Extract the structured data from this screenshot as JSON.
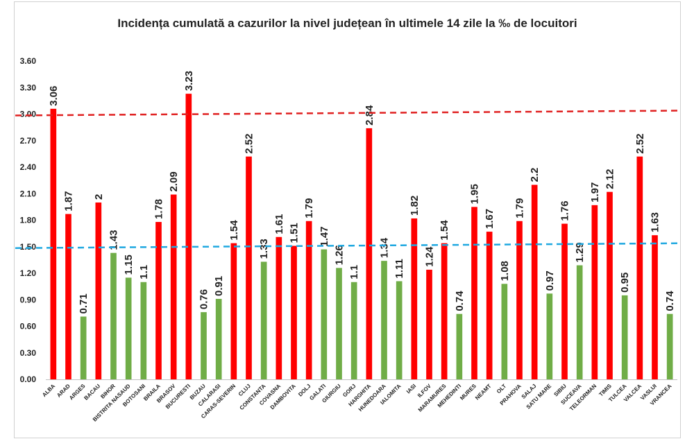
{
  "chart_data": {
    "type": "bar",
    "title": "Incidența cumulată a cazurilor la nivel județean în ultimele 14 zile la ‰ de locuitori",
    "xlabel": "",
    "ylabel": "",
    "ylim": [
      0,
      3.6
    ],
    "yticks": [
      "0.00",
      "0.30",
      "0.60",
      "0.90",
      "1.20",
      "1.50",
      "1.80",
      "2.10",
      "2.40",
      "2.70",
      "3.00",
      "3.30",
      "3.60"
    ],
    "grid": false,
    "colors": {
      "above": "#ff0000",
      "below": "#70ad47",
      "red_line": "#e02020",
      "blue_line": "#1fa8e0"
    },
    "threshold_lines": [
      {
        "name": "3.00",
        "value": 3.0,
        "color": "#e02020"
      },
      {
        "name": "1.50",
        "value": 1.5,
        "color": "#1fa8e0"
      }
    ],
    "categories": [
      "ALBA",
      "ARAD",
      "ARGES",
      "BACAU",
      "BIHOR",
      "BISTRITA NASAUD",
      "BOTOSANI",
      "BRAILA",
      "BRASOV",
      "BUCURESTI",
      "BUZAU",
      "CALARASI",
      "CARAS-SEVERIN",
      "CLUJ",
      "CONSTANTA",
      "COVASNA",
      "DAMBOVITA",
      "DOLJ",
      "GALATI",
      "GIURGIU",
      "GORJ",
      "HARGHITA",
      "HUNEDOARA",
      "IALOMITA",
      "IASI",
      "ILFOV",
      "MARAMURES",
      "MEHEDINTI",
      "MURES",
      "NEAMT",
      "OLT",
      "PRAHOVA",
      "SALAJ",
      "SATU MARE",
      "SIBIU",
      "SUCEAVA",
      "TELEORMAN",
      "TIMIS",
      "TULCEA",
      "VALCEA",
      "VASLUI",
      "VRANCEA"
    ],
    "values": [
      3.06,
      1.87,
      0.71,
      2,
      1.43,
      1.15,
      1.1,
      1.78,
      2.09,
      3.23,
      0.76,
      0.91,
      1.54,
      2.52,
      1.33,
      1.61,
      1.51,
      1.79,
      1.47,
      1.26,
      1.1,
      2.84,
      1.34,
      1.11,
      1.82,
      1.24,
      1.54,
      0.74,
      1.95,
      1.67,
      1.08,
      1.79,
      2.2,
      0.97,
      1.76,
      1.29,
      1.97,
      2.12,
      0.95,
      2.52,
      1.63,
      0.74
    ],
    "value_labels": [
      "3.06",
      "1.87",
      "0.71",
      "2",
      "1.43",
      "1.15",
      "1.1",
      "1.78",
      "2.09",
      "3.23",
      "0.76",
      "0.91",
      "1.54",
      "2.52",
      "1.33",
      "1.61",
      "1.51",
      "1.79",
      "1.47",
      "1.26",
      "1.1",
      "2.84",
      "1.34",
      "1.11",
      "1.82",
      "1.24",
      "1.54",
      "0.74",
      "1.95",
      "1.67",
      "1.08",
      "1.79",
      "2.2",
      "0.97",
      "1.76",
      "1.29",
      "1.97",
      "2.12",
      "0.95",
      "2.52",
      "1.63",
      "0.74"
    ],
    "bar_colors": [
      "red",
      "red",
      "green",
      "red",
      "green",
      "green",
      "green",
      "red",
      "red",
      "red",
      "green",
      "green",
      "red",
      "red",
      "green",
      "red",
      "red",
      "red",
      "green",
      "green",
      "green",
      "red",
      "green",
      "green",
      "red",
      "red",
      "red",
      "green",
      "red",
      "red",
      "green",
      "red",
      "red",
      "green",
      "red",
      "green",
      "red",
      "red",
      "green",
      "red",
      "red",
      "green"
    ]
  }
}
